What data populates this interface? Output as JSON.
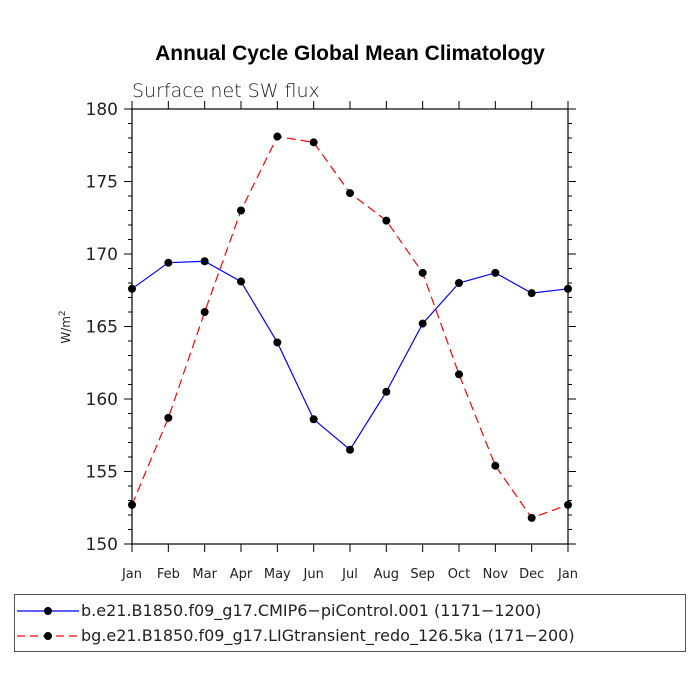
{
  "chart_data": {
    "type": "line",
    "title": "Annual Cycle Global Mean Climatology",
    "subtitle": "Surface net SW flux",
    "ylabel": "W/m",
    "ylabel_superscript": "2",
    "categories": [
      "Jan",
      "Feb",
      "Mar",
      "Apr",
      "May",
      "Jun",
      "Jul",
      "Aug",
      "Sep",
      "Oct",
      "Nov",
      "Dec",
      "Jan"
    ],
    "ylim": [
      150,
      180
    ],
    "yticks": [
      150,
      155,
      160,
      165,
      170,
      175,
      180
    ],
    "series": [
      {
        "name": "b.e21.B1850.f09_g17.CMIP6−piControl.001 (1171−1200)",
        "color": "#0000ff",
        "line_style": "solid",
        "marker": "filled-circle",
        "values": [
          167.6,
          169.4,
          169.5,
          168.1,
          163.9,
          158.6,
          156.5,
          160.5,
          165.2,
          168.0,
          168.7,
          167.3,
          167.6
        ]
      },
      {
        "name": "bg.e21.B1850.f09_g17.LIGtransient_redo_126.5ka (171−200)",
        "color": "#ff0000",
        "line_style": "dashed",
        "marker": "filled-circle",
        "values": [
          152.7,
          158.7,
          166.0,
          173.0,
          178.1,
          177.7,
          174.2,
          172.3,
          168.7,
          161.7,
          155.4,
          151.8,
          152.7
        ]
      }
    ],
    "grid": false,
    "legend_position": "bottom"
  }
}
